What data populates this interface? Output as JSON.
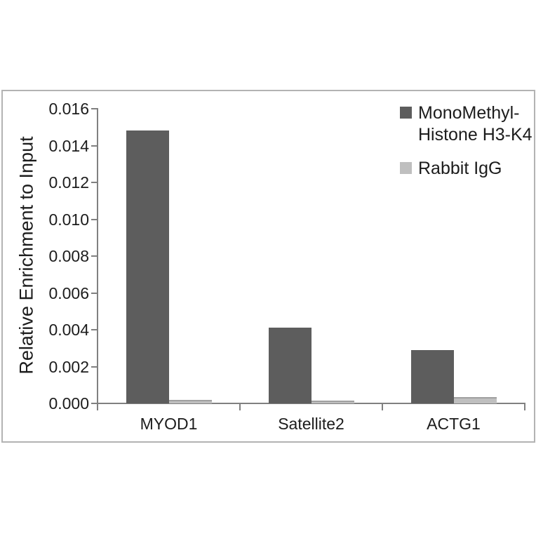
{
  "chart_data": {
    "type": "bar",
    "title": "",
    "xlabel": "",
    "ylabel": "Relative Enrichment to Input",
    "categories": [
      "MYOD1",
      "Satellite2",
      "ACTG1"
    ],
    "series": [
      {
        "name": "MonoMethyl-Histone H3-K4",
        "legend_lines": [
          "MonoMethyl-",
          "Histone H3-K4"
        ],
        "color": "#5d5d5d",
        "values": [
          0.0148,
          0.0041,
          0.0029
        ]
      },
      {
        "name": "Rabbit IgG",
        "legend_lines": [
          "Rabbit IgG"
        ],
        "color": "#bfbfbf",
        "values": [
          0.0002,
          0.00015,
          0.00035
        ]
      }
    ],
    "ylim": [
      0,
      0.016
    ],
    "ytick_step": 0.002,
    "ytick_labels": [
      "0.000",
      "0.002",
      "0.004",
      "0.006",
      "0.008",
      "0.010",
      "0.012",
      "0.014",
      "0.016"
    ],
    "grid": false,
    "legend_position": "top-right",
    "axis_color": "#808080",
    "frame_color": "#b3b3b3",
    "background": "#ffffff"
  }
}
